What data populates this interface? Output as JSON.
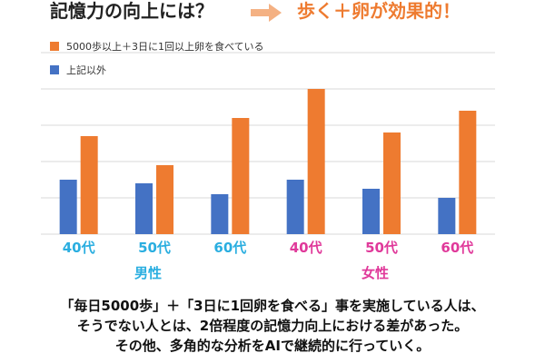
{
  "title": {
    "left": "記憶力の向上には？",
    "right": "歩く＋卵が効果的！"
  },
  "legend": [
    {
      "label": "5000歩以上＋3日に1回以上卵を食べている",
      "color": "#ee7b30"
    },
    {
      "label": "上記以外",
      "color": "#4472c4"
    }
  ],
  "groups": {
    "male": {
      "label": "男性",
      "color": "#2aaee0"
    },
    "female": {
      "label": "女性",
      "color": "#e0399a"
    }
  },
  "chart_data": {
    "type": "bar",
    "categories": [
      "40代",
      "50代",
      "60代",
      "40代",
      "50代",
      "60代"
    ],
    "category_colors": [
      "#2aaee0",
      "#2aaee0",
      "#2aaee0",
      "#e0399a",
      "#e0399a",
      "#e0399a"
    ],
    "series": [
      {
        "name": "5000歩以上＋3日に1回以上卵を食べている",
        "color": "#ee7b30",
        "values": [
          2.7,
          1.9,
          3.2,
          4.0,
          2.8,
          3.4
        ]
      },
      {
        "name": "上記以外",
        "color": "#4472c4",
        "values": [
          1.5,
          1.4,
          1.1,
          1.5,
          1.25,
          1.0
        ]
      }
    ],
    "ylim": [
      0,
      5
    ],
    "grid": true,
    "legend_position": "top-left"
  },
  "footer": {
    "line1": "「毎日5000歩」＋「3日に1回卵を食べる」事を実施している人は、",
    "line2": "そうでない人とは、2倍程度の記憶力向上における差があった。",
    "line3": "その他、多角的な分析をAIで継続的に行っていく。"
  }
}
